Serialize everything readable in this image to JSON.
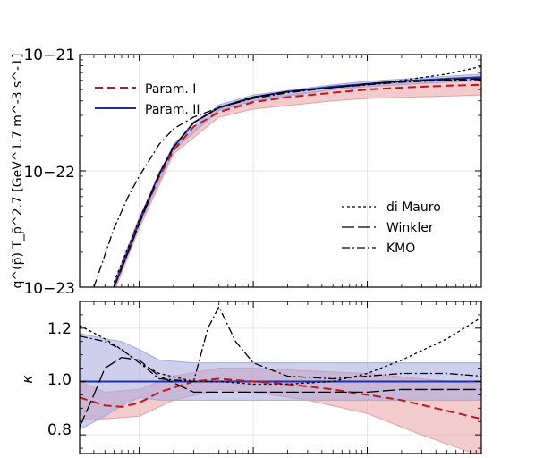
{
  "chart_data": [
    {
      "type": "line",
      "panel": "top",
      "ylabel": "q^(p̄) T_p̄^2.7 [GeV^1.7 m^-3 s^-1]",
      "yscale": "log",
      "xscale": "log",
      "ylim": [
        1e-23,
        1e-21
      ],
      "xlim": [
        0.3,
        1000
      ],
      "ytick_labels": [
        "10−23",
        "10−22",
        "10−21"
      ],
      "grid": true,
      "legend_placement": [
        "top-left",
        "lower-right"
      ],
      "legend_top": [
        "Param. I",
        "Param. II"
      ],
      "legend_bottom": [
        "di Mauro",
        "Winkler",
        "KMO"
      ],
      "series": [
        {
          "name": "Param. I",
          "style": "dashed",
          "color": "#c0161c",
          "x": [
            0.6,
            0.8,
            1.0,
            1.5,
            2,
            3,
            5,
            10,
            20,
            50,
            100,
            200,
            500,
            1000
          ],
          "y": [
            1e-23,
            2e-23,
            3.6e-23,
            9e-23,
            1.5e-22,
            2.4e-22,
            3.2e-22,
            3.9e-22,
            4.3e-22,
            4.7e-22,
            5e-22,
            5.2e-22,
            5.4e-22,
            5.5e-22
          ]
        },
        {
          "name": "Param. II",
          "style": "solid",
          "color": "#1f2fa8",
          "x": [
            0.6,
            0.8,
            1.0,
            1.5,
            2,
            3,
            5,
            10,
            20,
            50,
            100,
            200,
            500,
            1000
          ],
          "y": [
            1e-23,
            2.1e-23,
            3.7e-23,
            9.5e-23,
            1.6e-22,
            2.6e-22,
            3.5e-22,
            4.3e-22,
            4.8e-22,
            5.3e-22,
            5.6e-22,
            5.9e-22,
            6.2e-22,
            6.4e-22
          ]
        },
        {
          "name": "di Mauro",
          "style": "dotted",
          "color": "#000000",
          "x": [
            0.6,
            0.8,
            1.0,
            1.5,
            2,
            3,
            5,
            10,
            20,
            50,
            100,
            200,
            500,
            1000
          ],
          "y": [
            1.1e-23,
            2.2e-23,
            3.8e-23,
            9.5e-23,
            1.6e-22,
            2.6e-22,
            3.5e-22,
            4.3e-22,
            4.8e-22,
            5.2e-22,
            5.5e-22,
            6e-22,
            6.8e-22,
            7.9e-22
          ]
        },
        {
          "name": "Winkler",
          "style": "longdash",
          "color": "#000000",
          "x": [
            0.6,
            0.8,
            1.0,
            1.5,
            2,
            3,
            5,
            10,
            20,
            50,
            100,
            200,
            500,
            1000
          ],
          "y": [
            1e-23,
            2e-23,
            3.5e-23,
            9.3e-23,
            1.6e-22,
            2.6e-22,
            3.5e-22,
            4.3e-22,
            4.8e-22,
            5.2e-22,
            5.6e-22,
            5.9e-22,
            6.1e-22,
            6.2e-22
          ]
        },
        {
          "name": "KMO",
          "style": "dashdot",
          "color": "#000000",
          "x": [
            0.4,
            0.5,
            0.6,
            0.8,
            1.0,
            1.5,
            2,
            3,
            5,
            10,
            20,
            50,
            100,
            200,
            500,
            1000
          ],
          "y": [
            1e-23,
            1.9e-23,
            3.2e-23,
            6e-23,
            9e-23,
            1.7e-22,
            2.3e-22,
            2.9e-22,
            3.5e-22,
            4.2e-22,
            4.7e-22,
            5.2e-22,
            5.5e-22,
            5.8e-22,
            6e-22,
            6.1e-22
          ]
        }
      ],
      "bands": [
        {
          "name": "Param. I band",
          "color": "#e8a0a4",
          "x": [
            0.6,
            1.0,
            2,
            5,
            10,
            50,
            100,
            500,
            1000
          ],
          "lower": [
            9e-24,
            3.2e-23,
            1.4e-22,
            2.9e-22,
            3.4e-22,
            4e-22,
            4.2e-22,
            4.4e-22,
            4.5e-22
          ],
          "upper": [
            1.1e-23,
            4e-23,
            1.6e-22,
            3.4e-22,
            4.2e-22,
            5e-22,
            5.5e-22,
            6e-22,
            6.2e-22
          ]
        },
        {
          "name": "Param. II band",
          "color": "#a5a8de",
          "x": [
            0.6,
            1.0,
            2,
            5,
            10,
            50,
            100,
            500,
            1000
          ],
          "lower": [
            9.5e-24,
            3.4e-23,
            1.5e-22,
            3.3e-22,
            4e-22,
            5e-22,
            5.3e-22,
            5.8e-22,
            6e-22
          ],
          "upper": [
            1.05e-23,
            3.9e-23,
            1.7e-22,
            3.7e-22,
            4.5e-22,
            5.5e-22,
            5.9e-22,
            6.5e-22,
            6.8e-22
          ]
        }
      ]
    },
    {
      "type": "line",
      "panel": "bottom",
      "ylabel": "κ",
      "xscale": "log",
      "ylim": [
        0.73,
        1.3
      ],
      "xlim": [
        0.3,
        1000
      ],
      "ytick_labels": [
        "0.8",
        "1.0",
        "1.2"
      ],
      "yticks": [
        0.8,
        1.0,
        1.2
      ],
      "grid": true,
      "series": [
        {
          "name": "Param. II",
          "style": "solid",
          "color": "#1f2fa8",
          "x": [
            0.3,
            1000
          ],
          "y": [
            1.0,
            1.0
          ]
        },
        {
          "name": "Param. I",
          "style": "dashed",
          "color": "#c0161c",
          "x": [
            0.3,
            0.5,
            0.7,
            1.0,
            1.5,
            3,
            5,
            10,
            20,
            50,
            100,
            200,
            500,
            1000
          ],
          "y": [
            0.94,
            0.91,
            0.905,
            0.92,
            0.96,
            1.0,
            1.01,
            1.0,
            0.99,
            0.97,
            0.95,
            0.93,
            0.89,
            0.86
          ]
        },
        {
          "name": "di Mauro",
          "style": "dotted",
          "color": "#000000",
          "x": [
            0.3,
            0.5,
            0.7,
            1.0,
            1.5,
            3,
            5,
            10,
            20,
            50,
            100,
            200,
            500,
            1000
          ],
          "y": [
            1.21,
            1.16,
            1.12,
            1.07,
            1.03,
            1.0,
            1.0,
            0.99,
            0.99,
            1.0,
            1.03,
            1.08,
            1.16,
            1.24
          ]
        },
        {
          "name": "Winkler",
          "style": "longdash",
          "color": "#000000",
          "x": [
            0.3,
            0.4,
            0.5,
            0.7,
            1.0,
            1.5,
            3,
            5,
            10,
            20,
            50,
            100,
            200,
            500,
            1000
          ],
          "y": [
            0.83,
            0.95,
            1.05,
            1.09,
            1.08,
            1.02,
            0.96,
            0.96,
            0.96,
            0.96,
            0.96,
            0.96,
            0.97,
            0.97,
            0.97
          ]
        },
        {
          "name": "KMO",
          "style": "dashdot",
          "color": "#000000",
          "x": [
            0.3,
            0.5,
            0.7,
            1.0,
            1.5,
            3,
            4,
            5,
            7,
            10,
            20,
            50,
            100,
            200,
            500,
            1000
          ],
          "y": [
            1.17,
            1.15,
            1.12,
            1.07,
            1.01,
            1.0,
            1.2,
            1.28,
            1.15,
            1.07,
            1.02,
            1.01,
            1.02,
            1.03,
            1.03,
            1.02
          ]
        }
      ],
      "bands": [
        {
          "name": "Param. I band",
          "color": "#e8a0a4",
          "x": [
            0.3,
            0.5,
            1.0,
            2,
            5,
            10,
            30,
            100,
            300,
            1000
          ],
          "lower": [
            0.86,
            0.86,
            0.87,
            0.93,
            0.97,
            0.96,
            0.93,
            0.88,
            0.8,
            0.72
          ],
          "upper": [
            1.0,
            0.96,
            0.97,
            1.02,
            1.05,
            1.05,
            1.04,
            1.03,
            1.01,
            0.99
          ]
        },
        {
          "name": "Param. II band",
          "color": "#a5a8de",
          "x": [
            0.3,
            0.5,
            0.7,
            1.0,
            1.5,
            3,
            10,
            100,
            1000
          ],
          "lower": [
            0.82,
            0.87,
            0.91,
            0.94,
            0.93,
            0.93,
            0.93,
            0.93,
            0.93
          ],
          "upper": [
            1.18,
            1.16,
            1.15,
            1.12,
            1.08,
            1.07,
            1.07,
            1.07,
            1.07
          ]
        }
      ]
    }
  ]
}
